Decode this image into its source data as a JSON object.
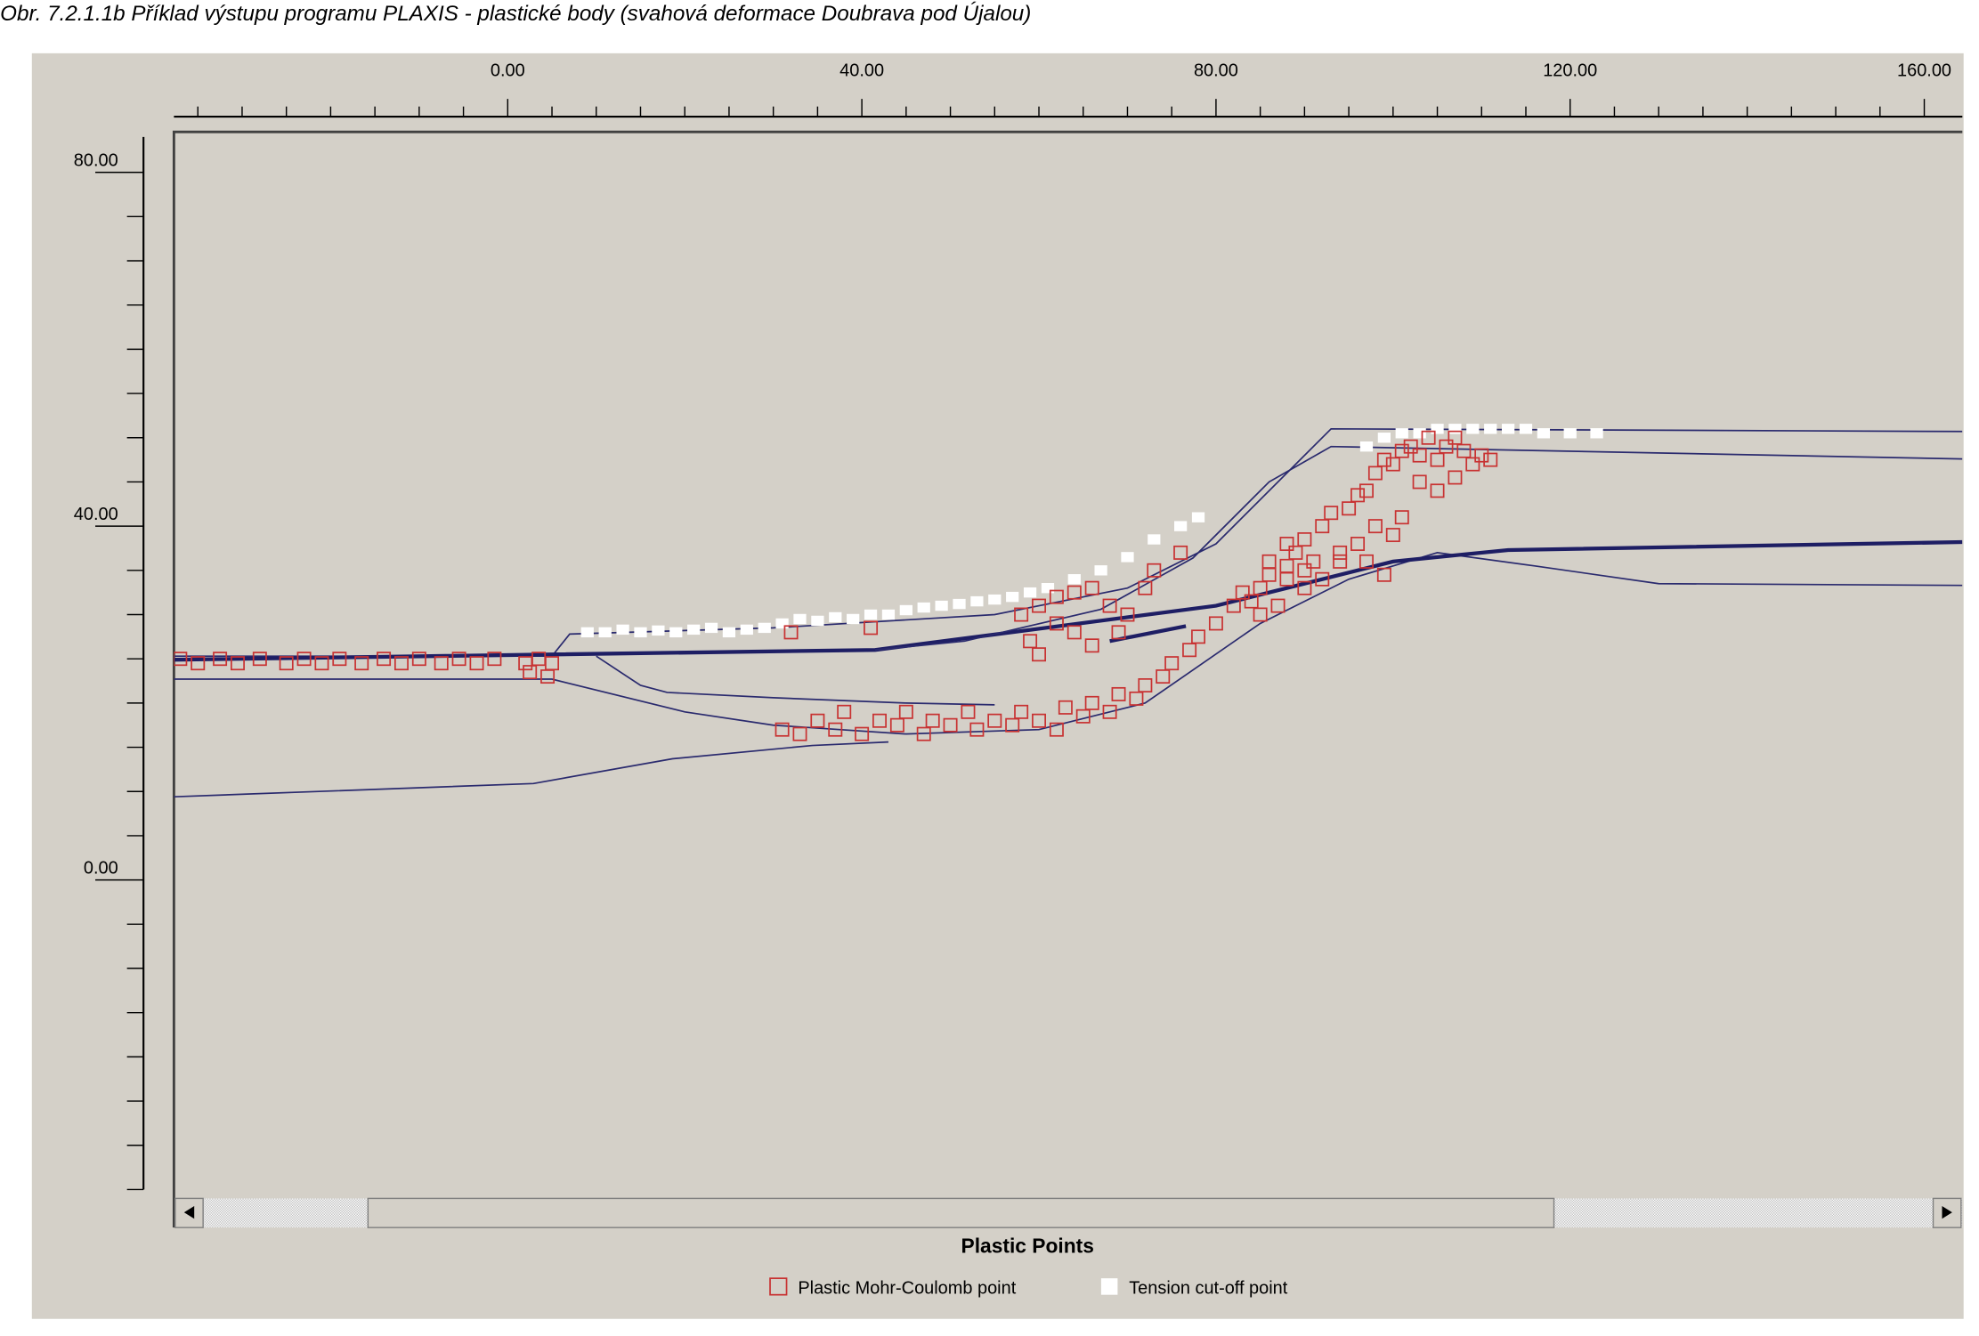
{
  "caption": "Obr. 7.2.1.1b  Příklad výstupu programu PLAXIS - plastické body (svahová deformace Doubrava pod Újalou)",
  "chart_data": {
    "type": "scatter",
    "title": "Plastic Points",
    "xlim": [
      -37.7,
      164.3
    ],
    "ylim": [
      -35,
      84
    ],
    "xticks": [
      {
        "value": 0,
        "label": "0.00"
      },
      {
        "value": 40,
        "label": "40.00"
      },
      {
        "value": 80,
        "label": "80.00"
      },
      {
        "value": 120,
        "label": "120.00"
      },
      {
        "value": 160,
        "label": "160.00"
      }
    ],
    "yticks": [
      {
        "value": 0,
        "label": "0.00"
      },
      {
        "value": 40,
        "label": "40.00"
      },
      {
        "value": 80,
        "label": "80.00"
      }
    ],
    "xminorticks": [
      -35,
      -30,
      -25,
      -20,
      -15,
      -10,
      -5,
      5,
      10,
      15,
      20,
      25,
      30,
      35,
      45,
      50,
      55,
      60,
      65,
      70,
      75,
      85,
      90,
      95,
      100,
      105,
      110,
      115,
      125,
      130,
      135,
      140,
      145,
      150,
      155
    ],
    "yminorticks": [
      -35,
      -30,
      -25,
      -20,
      -15,
      -10,
      -5,
      5,
      10,
      15,
      20,
      25,
      30,
      35,
      45,
      50,
      55,
      60,
      65,
      70,
      75
    ],
    "lines": [
      {
        "color": "#2a2a6e",
        "width": 1.2,
        "x": [
          -37.7,
          5,
          7,
          30,
          55,
          70,
          80,
          93,
          164.3
        ],
        "values": [
          25.3,
          25.3,
          27.8,
          28.5,
          30,
          33,
          38,
          51,
          50.7
        ]
      },
      {
        "color": "#2a2a6e",
        "width": 1.2,
        "x": [
          -37.7,
          5,
          20,
          30,
          45,
          60,
          72,
          85,
          95,
          105,
          116,
          130,
          164.3
        ],
        "values": [
          22.7,
          22.7,
          19,
          17.5,
          16.5,
          17,
          20,
          29,
          34,
          37,
          35.5,
          33.5,
          33.3
        ]
      },
      {
        "color": "#1e1e64",
        "width": 3,
        "x": [
          -37.7,
          41.5,
          80,
          100,
          113,
          164.3
        ],
        "values": [
          24.9,
          26,
          31,
          36,
          37.3,
          38.2
        ]
      },
      {
        "color": "#2a2a6e",
        "width": 1.2,
        "x": [
          -37.7,
          2.9,
          18.6,
          34.4,
          43
        ],
        "values": [
          9.4,
          10.9,
          13.7,
          15.2,
          15.6
        ]
      },
      {
        "color": "#2a2a6e",
        "width": 1.2,
        "x": [
          41.5,
          51.6,
          67,
          77.4,
          86,
          93,
          164.3
        ],
        "values": [
          26,
          27,
          30.6,
          36.4,
          45,
          49,
          47.6
        ]
      },
      {
        "color": "#2a2a6e",
        "width": 1.2,
        "x": [
          10,
          15,
          18,
          30,
          45,
          55
        ],
        "values": [
          25.3,
          22,
          21.2,
          20.6,
          20,
          19.8
        ]
      },
      {
        "color": "#1e1e64",
        "width": 3,
        "x": [
          68,
          76.6
        ],
        "values": [
          27,
          28.7
        ]
      }
    ],
    "series": [
      {
        "name": "Plastic Mohr-Coulomb point",
        "color": "#c83232",
        "x": [
          -37,
          -35,
          -32.5,
          -30.5,
          -28,
          -25,
          -23,
          -21,
          -19,
          -16.5,
          -14,
          -12,
          -10,
          -7.5,
          -5.5,
          -3.5,
          -1.5,
          2,
          3.5,
          5,
          2.5,
          4.5,
          31,
          33,
          35,
          37,
          38,
          40,
          42,
          44,
          45,
          47,
          48,
          50,
          52,
          53,
          55,
          57,
          58,
          60,
          62,
          63,
          65,
          66,
          68,
          69,
          71,
          72,
          74,
          75,
          77,
          78,
          80,
          82,
          83,
          85,
          86,
          88,
          89,
          90,
          91,
          92,
          93,
          95,
          96,
          97,
          98,
          99,
          100,
          101,
          102,
          103,
          104,
          105,
          106,
          107,
          108,
          109,
          110,
          111,
          105,
          107,
          103,
          101,
          100,
          98,
          96,
          94,
          92,
          90,
          88,
          87,
          85,
          84,
          86,
          88,
          90,
          94,
          97,
          99,
          58,
          60,
          62,
          64,
          66,
          68,
          70,
          62,
          64,
          59,
          60,
          66,
          69,
          72,
          73,
          76,
          32,
          41
        ],
        "values": [
          25,
          24.5,
          25,
          24.5,
          25,
          24.5,
          25,
          24.5,
          25,
          24.5,
          25,
          24.5,
          25,
          24.5,
          25,
          24.5,
          25,
          24.5,
          25,
          24.5,
          23.5,
          23,
          17,
          16.5,
          18,
          17,
          19,
          16.5,
          18,
          17.5,
          19,
          16.5,
          18,
          17.5,
          19,
          17,
          18,
          17.5,
          19,
          18,
          17,
          19.5,
          18.5,
          20,
          19,
          21,
          20.5,
          22,
          23,
          24.5,
          26,
          27.5,
          29,
          31,
          32.5,
          33,
          34.5,
          35.5,
          37,
          38.5,
          36,
          40,
          41.5,
          42,
          43.5,
          44,
          46,
          47.5,
          47,
          48.5,
          49,
          48,
          50,
          47.5,
          49,
          50,
          48.5,
          47,
          48,
          47.5,
          44,
          45.5,
          45,
          41,
          39,
          40,
          38,
          36,
          34,
          33,
          34,
          31,
          30,
          31.5,
          36,
          38,
          35,
          37,
          36,
          34.5,
          30,
          31,
          32,
          32.5,
          33,
          31,
          30,
          29,
          28,
          27,
          25.5,
          26.5,
          28,
          33,
          35,
          37,
          28,
          28.5
        ]
      },
      {
        "name": "Tension cut-off point",
        "color": "#ffffff",
        "x": [
          9,
          11,
          13,
          15,
          17,
          19,
          21,
          23,
          25,
          27,
          29,
          31,
          33,
          35,
          37,
          39,
          41,
          43,
          45,
          47,
          49,
          51,
          53,
          55,
          57,
          59,
          61,
          64,
          67,
          70,
          73,
          76,
          78,
          97,
          99,
          101,
          103,
          105,
          107,
          109,
          111,
          113,
          115,
          117,
          120,
          123
        ],
        "values": [
          28,
          28,
          28.3,
          28,
          28.2,
          28,
          28.3,
          28.5,
          28,
          28.3,
          28.5,
          29,
          29.5,
          29.3,
          29.7,
          29.5,
          30,
          30,
          30.5,
          30.8,
          31,
          31.2,
          31.5,
          31.7,
          32,
          32.5,
          33,
          34,
          35,
          36.5,
          38.5,
          40,
          41,
          49,
          50,
          50.5,
          50.5,
          51,
          51,
          51,
          51,
          51,
          51,
          50.5,
          50.5,
          50.5
        ]
      }
    ]
  }
}
